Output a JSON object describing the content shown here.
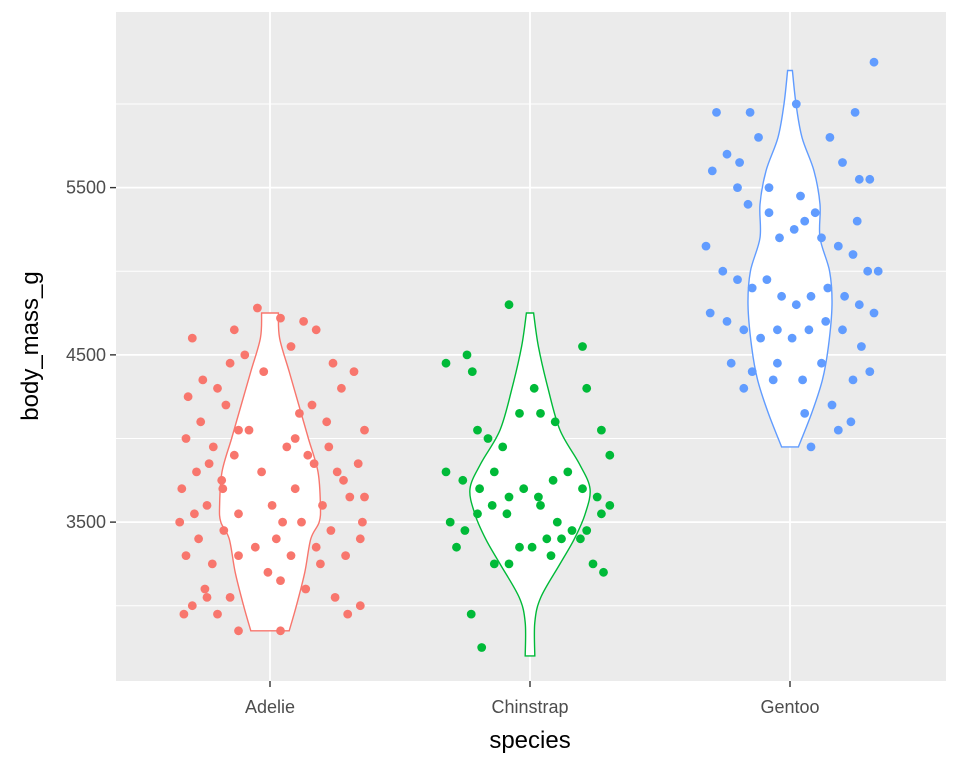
{
  "chart_data": {
    "type": "violin",
    "subtype": "violin with jittered points",
    "xlabel": "species",
    "ylabel": "body_mass_g",
    "categories": [
      "Adelie",
      "Chinstrap",
      "Gentoo"
    ],
    "ylim": [
      2550,
      6550
    ],
    "yticks": [
      3500,
      4500,
      5500
    ],
    "grid": true,
    "legend": "none",
    "colors": {
      "Adelie": "#F8766D",
      "Chinstrap": "#00BA38",
      "Gentoo": "#619CFF",
      "panel": "#EBEBEB",
      "grid": "#FFFFFF"
    },
    "series": [
      {
        "category": "Adelie",
        "violin": [
          {
            "y": 2850,
            "w": 0.32
          },
          {
            "y": 3000,
            "w": 0.44
          },
          {
            "y": 3200,
            "w": 0.58
          },
          {
            "y": 3400,
            "w": 0.68
          },
          {
            "y": 3500,
            "w": 0.82
          },
          {
            "y": 3600,
            "w": 0.84
          },
          {
            "y": 3800,
            "w": 0.8
          },
          {
            "y": 4000,
            "w": 0.64
          },
          {
            "y": 4200,
            "w": 0.48
          },
          {
            "y": 4400,
            "w": 0.32
          },
          {
            "y": 4600,
            "w": 0.16
          },
          {
            "y": 4750,
            "w": 0.14
          }
        ],
        "points": [
          [
            -0.82,
            2950
          ],
          [
            -0.74,
            3000
          ],
          [
            -0.62,
            3100
          ],
          [
            -0.5,
            2950
          ],
          [
            -0.38,
            3050
          ],
          [
            -0.8,
            3300
          ],
          [
            -0.68,
            3400
          ],
          [
            -0.55,
            3250
          ],
          [
            -0.44,
            3450
          ],
          [
            -0.3,
            3300
          ],
          [
            -0.86,
            3500
          ],
          [
            -0.72,
            3550
          ],
          [
            -0.6,
            3600
          ],
          [
            -0.45,
            3700
          ],
          [
            -0.3,
            3550
          ],
          [
            -0.84,
            3700
          ],
          [
            -0.7,
            3800
          ],
          [
            -0.58,
            3850
          ],
          [
            -0.46,
            3750
          ],
          [
            -0.34,
            3900
          ],
          [
            -0.8,
            4000
          ],
          [
            -0.66,
            4100
          ],
          [
            -0.54,
            3950
          ],
          [
            -0.42,
            4200
          ],
          [
            -0.3,
            4050
          ],
          [
            -0.78,
            4250
          ],
          [
            -0.64,
            4350
          ],
          [
            -0.5,
            4300
          ],
          [
            -0.38,
            4450
          ],
          [
            -0.24,
            4500
          ],
          [
            -0.74,
            4600
          ],
          [
            -0.34,
            4650
          ],
          [
            -0.12,
            4780
          ],
          [
            0.1,
            4720
          ],
          [
            0.32,
            4700
          ],
          [
            0.44,
            4650
          ],
          [
            -0.2,
            4050
          ],
          [
            -0.08,
            3800
          ],
          [
            0.02,
            3600
          ],
          [
            0.12,
            3500
          ],
          [
            0.24,
            3700
          ],
          [
            0.36,
            3900
          ],
          [
            0.5,
            3600
          ],
          [
            0.64,
            3800
          ],
          [
            0.76,
            3650
          ],
          [
            0.88,
            3500
          ],
          [
            -0.14,
            3350
          ],
          [
            -0.02,
            3200
          ],
          [
            0.1,
            3150
          ],
          [
            0.2,
            3300
          ],
          [
            0.34,
            3100
          ],
          [
            0.48,
            3250
          ],
          [
            0.62,
            3050
          ],
          [
            0.74,
            2950
          ],
          [
            0.86,
            3000
          ],
          [
            0.1,
            2850
          ],
          [
            -0.3,
            2850
          ],
          [
            0.24,
            4000
          ],
          [
            0.4,
            4200
          ],
          [
            0.54,
            4100
          ],
          [
            0.68,
            4300
          ],
          [
            0.8,
            4400
          ],
          [
            0.9,
            4050
          ],
          [
            0.6,
            4450
          ],
          [
            0.2,
            4550
          ],
          [
            -0.06,
            4400
          ],
          [
            0.16,
            3950
          ],
          [
            0.28,
            4150
          ],
          [
            0.42,
            3850
          ],
          [
            0.56,
            3950
          ],
          [
            0.7,
            3750
          ],
          [
            0.84,
            3850
          ],
          [
            0.9,
            3650
          ],
          [
            0.06,
            3400
          ],
          [
            0.3,
            3500
          ],
          [
            0.44,
            3350
          ],
          [
            0.58,
            3450
          ],
          [
            0.72,
            3300
          ],
          [
            0.86,
            3400
          ],
          [
            -0.6,
            3050
          ]
        ]
      },
      {
        "category": "Chinstrap",
        "violin": [
          {
            "y": 2700,
            "w": 0.08
          },
          {
            "y": 2900,
            "w": 0.08
          },
          {
            "y": 3050,
            "w": 0.18
          },
          {
            "y": 3250,
            "w": 0.5
          },
          {
            "y": 3400,
            "w": 0.74
          },
          {
            "y": 3550,
            "w": 0.92
          },
          {
            "y": 3700,
            "w": 1.0
          },
          {
            "y": 3850,
            "w": 0.82
          },
          {
            "y": 4050,
            "w": 0.5
          },
          {
            "y": 4300,
            "w": 0.3
          },
          {
            "y": 4550,
            "w": 0.14
          },
          {
            "y": 4750,
            "w": 0.06
          }
        ],
        "points": [
          [
            -0.8,
            4450
          ],
          [
            -0.6,
            4500
          ],
          [
            -0.55,
            4400
          ],
          [
            -0.2,
            4800
          ],
          [
            0.5,
            4550
          ],
          [
            0.54,
            4300
          ],
          [
            0.04,
            4300
          ],
          [
            -0.1,
            4150
          ],
          [
            0.1,
            4150
          ],
          [
            0.24,
            4100
          ],
          [
            -0.5,
            4050
          ],
          [
            -0.4,
            4000
          ],
          [
            -0.26,
            3950
          ],
          [
            0.68,
            4050
          ],
          [
            0.76,
            3900
          ],
          [
            -0.8,
            3800
          ],
          [
            -0.64,
            3750
          ],
          [
            -0.48,
            3700
          ],
          [
            -0.34,
            3800
          ],
          [
            -0.2,
            3650
          ],
          [
            -0.06,
            3700
          ],
          [
            0.08,
            3650
          ],
          [
            0.22,
            3750
          ],
          [
            0.36,
            3800
          ],
          [
            0.5,
            3700
          ],
          [
            0.64,
            3650
          ],
          [
            0.76,
            3600
          ],
          [
            -0.76,
            3500
          ],
          [
            -0.62,
            3450
          ],
          [
            -0.5,
            3550
          ],
          [
            -0.36,
            3600
          ],
          [
            -0.22,
            3550
          ],
          [
            0.1,
            3600
          ],
          [
            0.26,
            3500
          ],
          [
            0.4,
            3450
          ],
          [
            0.54,
            3450
          ],
          [
            0.68,
            3550
          ],
          [
            -0.7,
            3350
          ],
          [
            -0.1,
            3350
          ],
          [
            0.02,
            3350
          ],
          [
            0.16,
            3400
          ],
          [
            0.3,
            3400
          ],
          [
            0.6,
            3250
          ],
          [
            0.7,
            3200
          ],
          [
            -0.34,
            3250
          ],
          [
            -0.2,
            3250
          ],
          [
            0.2,
            3300
          ],
          [
            -0.56,
            2950
          ],
          [
            -0.46,
            2750
          ],
          [
            0.48,
            3400
          ]
        ]
      },
      {
        "category": "Gentoo",
        "violin": [
          {
            "y": 3950,
            "w": 0.14
          },
          {
            "y": 4150,
            "w": 0.36
          },
          {
            "y": 4350,
            "w": 0.54
          },
          {
            "y": 4550,
            "w": 0.64
          },
          {
            "y": 4800,
            "w": 0.7
          },
          {
            "y": 5000,
            "w": 0.66
          },
          {
            "y": 5200,
            "w": 0.5
          },
          {
            "y": 5400,
            "w": 0.5
          },
          {
            "y": 5600,
            "w": 0.4
          },
          {
            "y": 5800,
            "w": 0.2
          },
          {
            "y": 6000,
            "w": 0.1
          },
          {
            "y": 6200,
            "w": 0.04
          }
        ],
        "points": [
          [
            0.8,
            6250
          ],
          [
            0.06,
            6000
          ],
          [
            0.62,
            5950
          ],
          [
            -0.7,
            5950
          ],
          [
            -0.38,
            5950
          ],
          [
            0.38,
            5800
          ],
          [
            -0.3,
            5800
          ],
          [
            -0.6,
            5700
          ],
          [
            -0.48,
            5650
          ],
          [
            0.5,
            5650
          ],
          [
            0.66,
            5550
          ],
          [
            0.76,
            5550
          ],
          [
            -0.74,
            5600
          ],
          [
            -0.5,
            5500
          ],
          [
            -0.2,
            5500
          ],
          [
            0.1,
            5450
          ],
          [
            0.24,
            5350
          ],
          [
            0.64,
            5300
          ],
          [
            -0.4,
            5400
          ],
          [
            -0.2,
            5350
          ],
          [
            -0.1,
            5200
          ],
          [
            0.04,
            5250
          ],
          [
            0.14,
            5300
          ],
          [
            0.3,
            5200
          ],
          [
            0.46,
            5150
          ],
          [
            0.6,
            5100
          ],
          [
            0.74,
            5000
          ],
          [
            0.84,
            5000
          ],
          [
            -0.8,
            5150
          ],
          [
            -0.64,
            5000
          ],
          [
            -0.5,
            4950
          ],
          [
            -0.36,
            4900
          ],
          [
            -0.22,
            4950
          ],
          [
            -0.08,
            4850
          ],
          [
            0.06,
            4800
          ],
          [
            0.2,
            4850
          ],
          [
            0.36,
            4900
          ],
          [
            0.52,
            4850
          ],
          [
            0.66,
            4800
          ],
          [
            0.8,
            4750
          ],
          [
            -0.76,
            4750
          ],
          [
            -0.6,
            4700
          ],
          [
            -0.44,
            4650
          ],
          [
            -0.28,
            4600
          ],
          [
            -0.12,
            4650
          ],
          [
            0.02,
            4600
          ],
          [
            0.18,
            4650
          ],
          [
            0.34,
            4700
          ],
          [
            0.5,
            4650
          ],
          [
            0.68,
            4550
          ],
          [
            -0.56,
            4450
          ],
          [
            -0.36,
            4400
          ],
          [
            -0.16,
            4350
          ],
          [
            0.12,
            4350
          ],
          [
            0.3,
            4450
          ],
          [
            0.6,
            4350
          ],
          [
            0.76,
            4400
          ],
          [
            -0.44,
            4300
          ],
          [
            0.14,
            4150
          ],
          [
            0.4,
            4200
          ],
          [
            0.58,
            4100
          ],
          [
            0.2,
            3950
          ],
          [
            0.46,
            4050
          ],
          [
            -0.12,
            4450
          ]
        ]
      }
    ]
  }
}
